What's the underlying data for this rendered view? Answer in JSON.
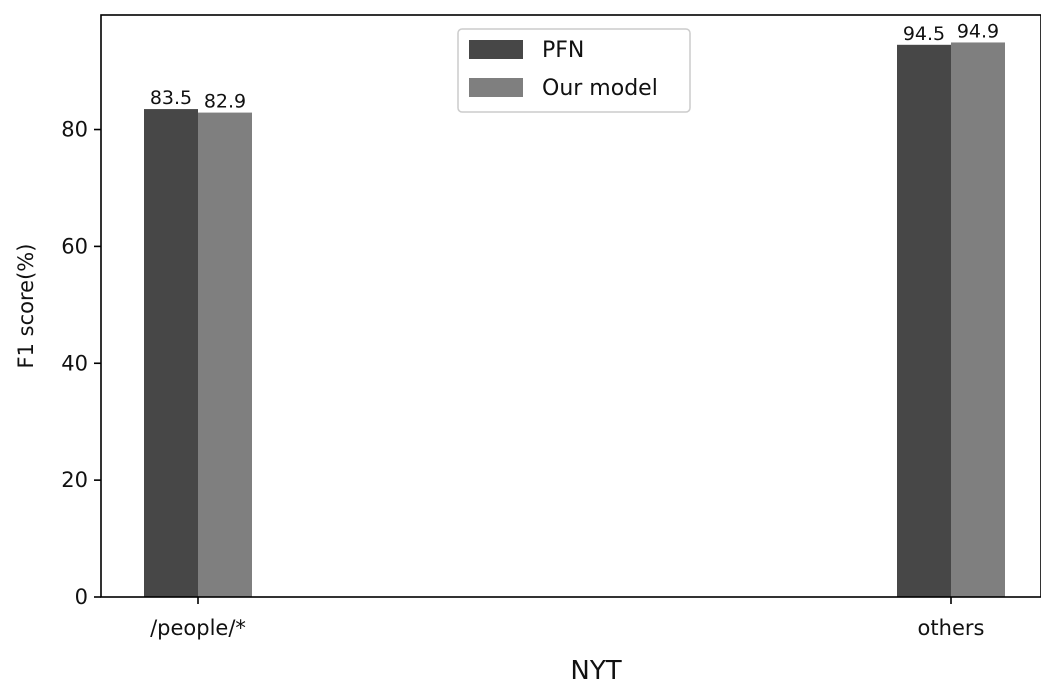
{
  "chart_data": {
    "type": "bar",
    "categories": [
      "/people/*",
      "others"
    ],
    "series": [
      {
        "name": "PFN",
        "values": [
          83.5,
          94.5
        ],
        "color": "#474747"
      },
      {
        "name": "Our model",
        "values": [
          82.9,
          94.9
        ],
        "color": "#7f7f7f"
      }
    ],
    "title": "",
    "xlabel": "NYT",
    "ylabel": "F1 score(%)",
    "ylim": [
      0,
      99.6
    ],
    "yticks": [
      0,
      20,
      40,
      60,
      80
    ],
    "data_labels": [
      [
        "83.5",
        "94.5"
      ],
      [
        "82.9",
        "94.9"
      ]
    ],
    "legend_position": "upper center",
    "grid": false
  }
}
